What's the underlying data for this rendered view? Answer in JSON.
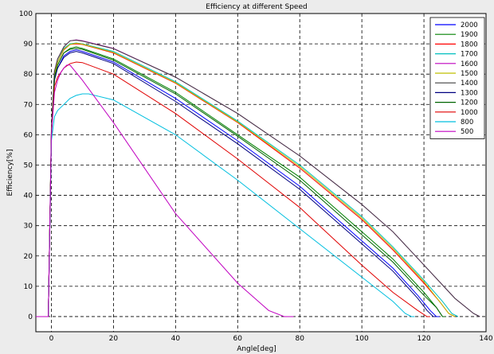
{
  "chart_data": {
    "type": "line",
    "title": "Efficiency at different Speed",
    "xlabel": "Angle[deg]",
    "ylabel": "Efficiency[%]",
    "xlim": [
      -5,
      140
    ],
    "ylim": [
      -5,
      100
    ],
    "xticks": [
      0,
      20,
      40,
      60,
      80,
      100,
      120,
      140
    ],
    "yticks": [
      0,
      10,
      20,
      30,
      40,
      50,
      60,
      70,
      80,
      90,
      100
    ],
    "grid": true,
    "legend_position": "top-right",
    "series": [
      {
        "name": "2000",
        "color": "#0000ff",
        "x": [
          -5,
          -1,
          0,
          1,
          2,
          4,
          6,
          8,
          10,
          20,
          40,
          60,
          80,
          100,
          110,
          118,
          122,
          124,
          125
        ],
        "y": [
          0,
          0,
          60,
          79,
          82,
          86,
          87.5,
          88,
          87.5,
          84,
          72,
          58,
          43,
          25,
          16,
          7,
          2,
          0,
          0
        ]
      },
      {
        "name": "1900",
        "color": "#008000",
        "x": [
          -5,
          -1,
          0,
          1,
          2,
          4,
          6,
          8,
          10,
          20,
          40,
          60,
          80,
          100,
          110,
          120,
          124,
          126,
          127
        ],
        "y": [
          0,
          0,
          60,
          79,
          83,
          87,
          88.5,
          89,
          88.5,
          85,
          74,
          60,
          46,
          28,
          19,
          8,
          3,
          0,
          0
        ]
      },
      {
        "name": "1800",
        "color": "#ff0000",
        "x": [
          -5,
          -1,
          0,
          1,
          2,
          4,
          6,
          8,
          10,
          20,
          40,
          60,
          80,
          100,
          110,
          120,
          125,
          128,
          130
        ],
        "y": [
          0,
          0,
          61,
          80,
          84,
          88,
          89.8,
          90,
          89.8,
          87,
          77,
          64,
          49,
          32,
          22,
          11,
          5,
          1,
          0
        ]
      },
      {
        "name": "1700",
        "color": "#00bfbf",
        "x": [
          -5,
          -1,
          0,
          1,
          2,
          4,
          6,
          8,
          10,
          20,
          40,
          60,
          80,
          100,
          110,
          120,
          126,
          129,
          131
        ],
        "y": [
          0,
          0,
          61,
          80,
          84,
          88.5,
          90,
          90.3,
          90,
          87.5,
          77.5,
          64.5,
          50,
          33,
          23,
          12,
          5,
          1,
          0
        ]
      },
      {
        "name": "1600",
        "color": "#bf00bf",
        "x": [
          -5,
          -1,
          0,
          1,
          2,
          4,
          6,
          8,
          10,
          20,
          40,
          60,
          80,
          100,
          110,
          120,
          130,
          136,
          138
        ],
        "y": [
          0,
          0,
          62,
          81,
          85,
          89,
          91,
          91.3,
          91,
          88.5,
          79,
          67,
          53,
          37,
          28,
          17,
          6,
          1,
          0
        ]
      },
      {
        "name": "1500",
        "color": "#bfbf00",
        "x": [
          -5,
          -1,
          0,
          1,
          2,
          4,
          6,
          8,
          10,
          20,
          40,
          60,
          80,
          100,
          110,
          120,
          125,
          128,
          130
        ],
        "y": [
          0,
          0,
          61,
          80,
          84,
          88.2,
          89.8,
          90.2,
          89.9,
          87.2,
          77.2,
          64.2,
          49.5,
          32.5,
          22.5,
          11.5,
          5,
          1,
          0
        ]
      },
      {
        "name": "1400",
        "color": "#404040",
        "x": [
          -5,
          -1,
          0,
          1,
          2,
          4,
          6,
          8,
          10,
          20,
          40,
          60,
          80,
          100,
          110,
          120,
          130,
          136,
          138
        ],
        "y": [
          0,
          0,
          62,
          81,
          85,
          89,
          91,
          91.2,
          90.9,
          88.4,
          79,
          67,
          53,
          37,
          28,
          17,
          6,
          1,
          0
        ]
      },
      {
        "name": "1300",
        "color": "#000080",
        "x": [
          -5,
          -1,
          0,
          1,
          2,
          4,
          6,
          8,
          10,
          20,
          40,
          60,
          80,
          100,
          110,
          118,
          121,
          123,
          124
        ],
        "y": [
          0,
          0,
          60,
          78,
          82,
          85.5,
          87,
          87.5,
          87,
          83.5,
          71,
          57,
          42,
          24,
          15,
          6,
          2,
          0,
          0
        ]
      },
      {
        "name": "1200",
        "color": "#006400",
        "x": [
          -5,
          -1,
          0,
          1,
          2,
          4,
          6,
          8,
          10,
          20,
          40,
          60,
          80,
          100,
          110,
          120,
          124,
          126,
          127
        ],
        "y": [
          0,
          0,
          60,
          79,
          83,
          87,
          88.2,
          88.5,
          88.2,
          84.6,
          73.5,
          59.5,
          45,
          27,
          18,
          7,
          3,
          0,
          0
        ]
      },
      {
        "name": "1000",
        "color": "#e00000",
        "x": [
          -5,
          -1,
          0,
          1,
          2,
          4,
          6,
          8,
          10,
          20,
          40,
          60,
          80,
          100,
          110,
          118,
          121,
          122
        ],
        "y": [
          0,
          0,
          60,
          76,
          79,
          82,
          83.5,
          84,
          83.8,
          80,
          67,
          52,
          36,
          17,
          8,
          2,
          0,
          0
        ]
      },
      {
        "name": "800",
        "color": "#00bfdf",
        "x": [
          -5,
          -1,
          0,
          1,
          2,
          4,
          6,
          8,
          10,
          12,
          20,
          40,
          60,
          80,
          100,
          110,
          114,
          116,
          117
        ],
        "y": [
          0,
          0,
          58,
          66,
          68,
          70,
          72,
          73,
          73.5,
          73.5,
          71.5,
          60,
          45,
          29,
          13,
          5,
          1,
          0,
          0
        ]
      },
      {
        "name": "500",
        "color": "#c000c0",
        "x": [
          -5,
          -1,
          0,
          1,
          2,
          3,
          4,
          5,
          6,
          10,
          20,
          40,
          60,
          70,
          75,
          77,
          78
        ],
        "y": [
          0,
          0,
          60,
          74,
          78,
          80.5,
          82,
          83,
          83,
          78,
          64,
          34,
          11,
          2,
          0,
          0,
          0
        ]
      }
    ]
  }
}
